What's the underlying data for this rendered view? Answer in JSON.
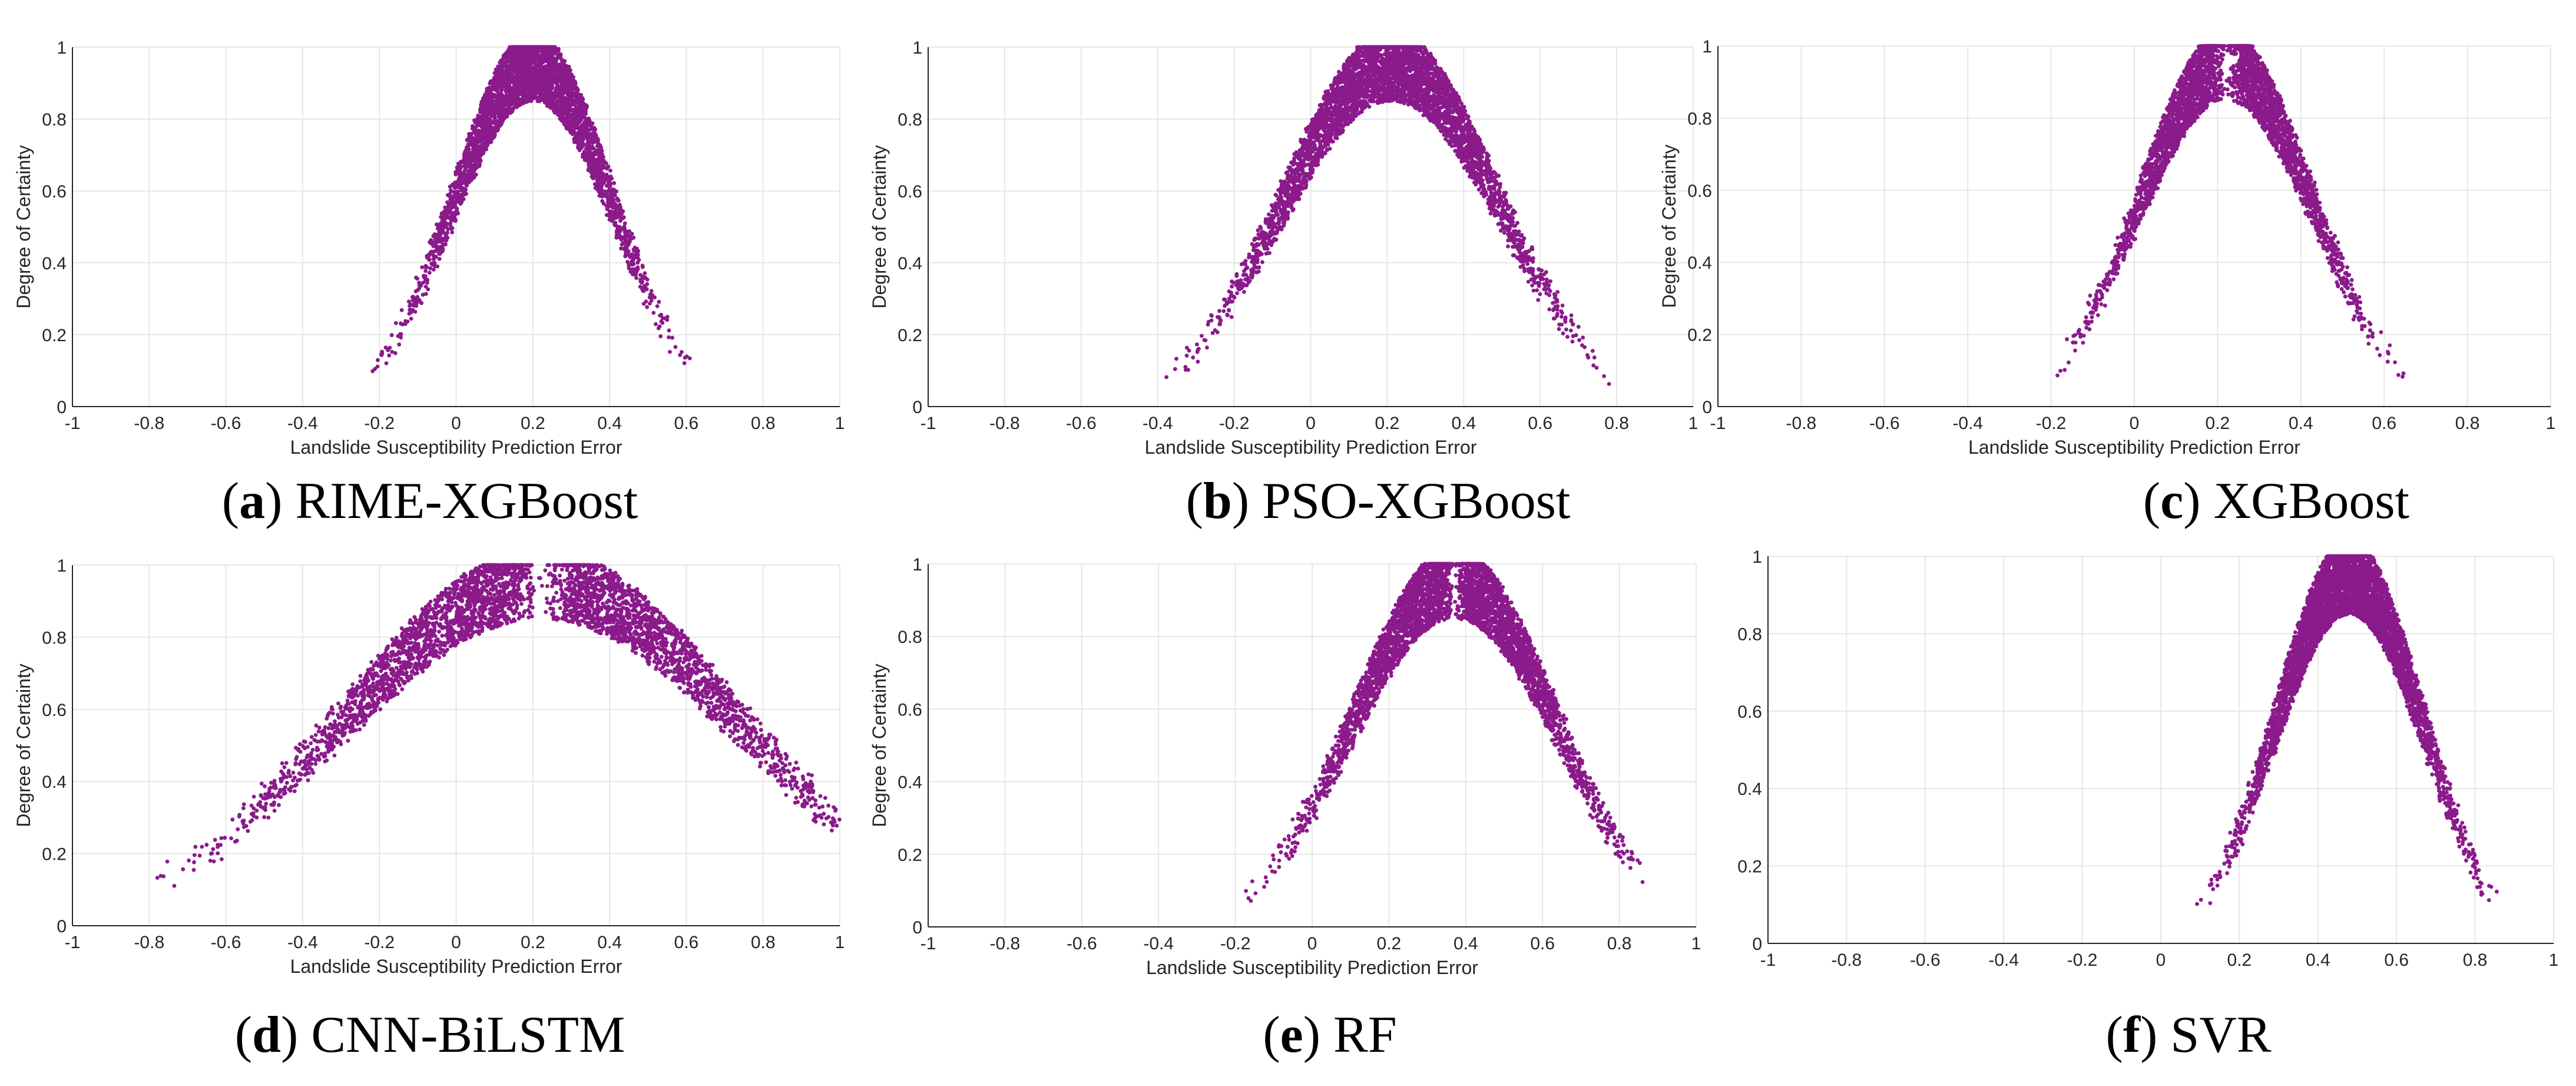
{
  "chart_data": [
    {
      "type": "scatter",
      "panel_letter": "a",
      "model": "RIME-XGBoost",
      "xlabel": "Landslide Susceptibility Prediction Error",
      "ylabel": "Degree of Certainty",
      "xlim": [
        -1,
        1
      ],
      "ylim": [
        0,
        1
      ],
      "xticks": [
        "-1",
        "-0.8",
        "-0.6",
        "-0.4",
        "-0.2",
        "0",
        "0.2",
        "0.4",
        "0.6",
        "0.8",
        "1"
      ],
      "yticks": [
        "0",
        "0.2",
        "0.4",
        "0.6",
        "0.8",
        "1"
      ],
      "color": "#8B1A8B",
      "grid": true,
      "distribution": {
        "peak_error": 0.2,
        "spread": 0.22,
        "point_count": 3500,
        "center_gap": 0.0
      }
    },
    {
      "type": "scatter",
      "panel_letter": "b",
      "model": "PSO-XGBoost",
      "xlabel": "Landslide Susceptibility Prediction Error",
      "ylabel": "Degree of Certainty",
      "xlim": [
        -1,
        1
      ],
      "ylim": [
        0,
        1
      ],
      "xticks": [
        "-1",
        "-0.8",
        "-0.6",
        "-0.4",
        "-0.2",
        "0",
        "0.2",
        "0.4",
        "0.6",
        "0.8",
        "1"
      ],
      "yticks": [
        "0",
        "0.2",
        "0.4",
        "0.6",
        "0.8",
        "1"
      ],
      "color": "#8B1A8B",
      "grid": true,
      "distribution": {
        "peak_error": 0.21,
        "spread": 0.3,
        "point_count": 4200,
        "center_gap": 0.0
      }
    },
    {
      "type": "scatter",
      "panel_letter": "c",
      "model": "XGBoost",
      "xlabel": "Landslide Susceptibility Prediction Error",
      "ylabel": "Degree of Certainty",
      "xlim": [
        -1,
        1
      ],
      "ylim": [
        0,
        1
      ],
      "xticks": [
        "-1",
        "-0.8",
        "-0.6",
        "-0.4",
        "-0.2",
        "0",
        "0.2",
        "0.4",
        "0.6",
        "0.8",
        "1"
      ],
      "yticks": [
        "0",
        "0.2",
        "0.4",
        "0.6",
        "0.8",
        "1"
      ],
      "color": "#8B1A8B",
      "grid": true,
      "distribution": {
        "peak_error": 0.22,
        "spread": 0.22,
        "point_count": 3800,
        "center_gap": 0.05
      }
    },
    {
      "type": "scatter",
      "panel_letter": "d",
      "model": "CNN-BiLSTM",
      "xlabel": "Landslide Susceptibility Prediction Error",
      "ylabel": "Degree of Certainty",
      "xlim": [
        -1,
        1
      ],
      "ylim": [
        0,
        1
      ],
      "xticks": [
        "-1",
        "-0.8",
        "-0.6",
        "-0.4",
        "-0.2",
        "0",
        "0.2",
        "0.4",
        "0.6",
        "0.8",
        "1"
      ],
      "yticks": [
        "0",
        "0.2",
        "0.4",
        "0.6",
        "0.8",
        "1"
      ],
      "color": "#8B1A8B",
      "grid": true,
      "distribution": {
        "peak_error": 0.22,
        "spread": 0.55,
        "point_count": 4200,
        "center_gap": 0.1
      }
    },
    {
      "type": "scatter",
      "panel_letter": "e",
      "model": "RF",
      "xlabel": "Landslide Susceptibility Prediction Error",
      "ylabel": "Degree of Certainty",
      "xlim": [
        -1,
        1
      ],
      "ylim": [
        0,
        1
      ],
      "xticks": [
        "-1",
        "-0.8",
        "-0.6",
        "-0.4",
        "-0.2",
        "0",
        "0.2",
        "0.4",
        "0.6",
        "0.8",
        "1"
      ],
      "yticks": [
        "0",
        "0.2",
        "0.4",
        "0.6",
        "0.8",
        "1"
      ],
      "color": "#8B1A8B",
      "grid": true,
      "distribution": {
        "peak_error": 0.37,
        "spread": 0.28,
        "point_count": 4200,
        "center_gap": 0.04
      }
    },
    {
      "type": "scatter",
      "panel_letter": "f",
      "model": "SVR",
      "xlabel": "",
      "ylabel": "",
      "xlim": [
        -1,
        1
      ],
      "ylim": [
        0,
        1
      ],
      "xticks": [
        "-1",
        "-0.8",
        "-0.6",
        "-0.4",
        "-0.2",
        "0",
        "0.2",
        "0.4",
        "0.6",
        "0.8",
        "1"
      ],
      "yticks": [
        "0",
        "0.2",
        "0.4",
        "0.6",
        "0.8",
        "1"
      ],
      "color": "#8B1A8B",
      "grid": true,
      "distribution": {
        "peak_error": 0.48,
        "spread": 0.2,
        "point_count": 4500,
        "center_gap": 0.0
      }
    }
  ]
}
